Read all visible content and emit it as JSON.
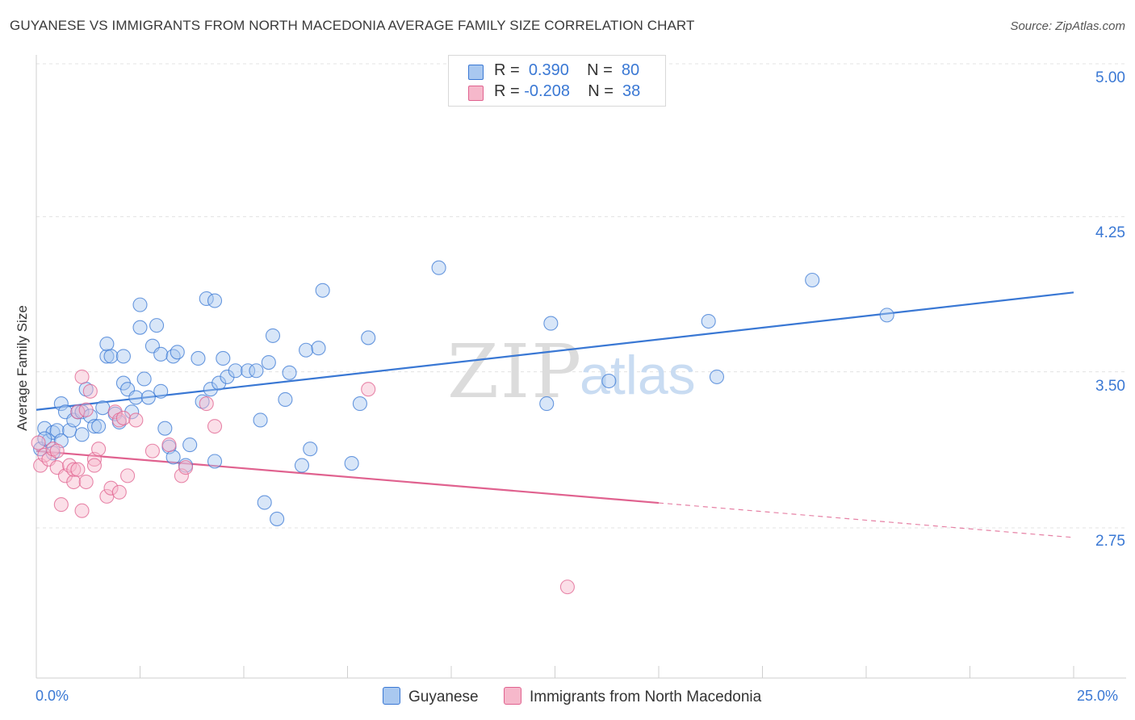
{
  "header": {
    "title": "GUYANESE VS IMMIGRANTS FROM NORTH MACEDONIA AVERAGE FAMILY SIZE CORRELATION CHART",
    "source": "Source: ZipAtlas.com"
  },
  "legend": {
    "rows": [
      {
        "r_label": "R =",
        "r_value": "0.390",
        "n_label": "N =",
        "n_value": "80",
        "color": "#a9c8f0"
      },
      {
        "r_label": "R =",
        "r_value": "-0.208",
        "n_label": "N =",
        "n_value": "38",
        "color": "#f6b8cb"
      }
    ]
  },
  "watermark": {
    "zip": "ZIP",
    "atlas": "atlas"
  },
  "chart_data": {
    "type": "scatter",
    "title": "GUYANESE VS IMMIGRANTS FROM NORTH MACEDONIA AVERAGE FAMILY SIZE CORRELATION CHART",
    "xlabel": "",
    "ylabel": "Average Family Size",
    "xlim": [
      0,
      25
    ],
    "ylim": [
      2.0,
      5.1
    ],
    "x_tick_labels": [
      "0.0%",
      "25.0%"
    ],
    "y_ticks": [
      2.75,
      3.5,
      4.25,
      5.0
    ],
    "y_tick_labels": [
      "2.75",
      "3.50",
      "4.25",
      "5.00"
    ],
    "grid": true,
    "series": [
      {
        "name": "Guyanese",
        "color": "#3a78d4",
        "fill": "#a9c8f0",
        "trend": {
          "x": [
            0,
            25
          ],
          "y": [
            3.39,
            3.96
          ],
          "dashed_from": null
        },
        "points": [
          [
            0.1,
            3.2
          ],
          [
            0.2,
            3.3
          ],
          [
            0.3,
            3.24
          ],
          [
            0.4,
            3.18
          ],
          [
            0.4,
            3.28
          ],
          [
            0.5,
            3.29
          ],
          [
            0.6,
            3.42
          ],
          [
            0.6,
            3.24
          ],
          [
            0.7,
            3.38
          ],
          [
            0.8,
            3.29
          ],
          [
            0.9,
            3.34
          ],
          [
            1.0,
            3.38
          ],
          [
            1.1,
            3.38
          ],
          [
            1.1,
            3.27
          ],
          [
            1.2,
            3.49
          ],
          [
            1.3,
            3.36
          ],
          [
            1.4,
            3.31
          ],
          [
            1.5,
            3.31
          ],
          [
            1.6,
            3.4
          ],
          [
            1.7,
            3.65
          ],
          [
            1.7,
            3.71
          ],
          [
            1.8,
            3.65
          ],
          [
            1.9,
            3.37
          ],
          [
            2.0,
            3.33
          ],
          [
            2.1,
            3.65
          ],
          [
            2.1,
            3.52
          ],
          [
            2.2,
            3.49
          ],
          [
            2.3,
            3.38
          ],
          [
            2.4,
            3.45
          ],
          [
            2.5,
            3.79
          ],
          [
            2.5,
            3.9
          ],
          [
            2.6,
            3.54
          ],
          [
            2.7,
            3.45
          ],
          [
            2.8,
            3.7
          ],
          [
            2.9,
            3.8
          ],
          [
            3.0,
            3.48
          ],
          [
            3.0,
            3.66
          ],
          [
            3.1,
            3.3
          ],
          [
            3.2,
            3.21
          ],
          [
            3.3,
            3.65
          ],
          [
            3.3,
            3.16
          ],
          [
            3.4,
            3.67
          ],
          [
            3.6,
            3.12
          ],
          [
            3.7,
            3.22
          ],
          [
            3.9,
            3.64
          ],
          [
            4.0,
            3.43
          ],
          [
            4.1,
            3.93
          ],
          [
            4.2,
            3.49
          ],
          [
            4.3,
            3.14
          ],
          [
            4.3,
            3.92
          ],
          [
            4.4,
            3.52
          ],
          [
            4.5,
            3.64
          ],
          [
            4.6,
            3.55
          ],
          [
            4.8,
            3.58
          ],
          [
            5.1,
            3.58
          ],
          [
            5.3,
            3.58
          ],
          [
            5.4,
            3.34
          ],
          [
            5.5,
            2.94
          ],
          [
            5.6,
            3.62
          ],
          [
            5.7,
            3.75
          ],
          [
            5.8,
            2.86
          ],
          [
            6.0,
            3.44
          ],
          [
            6.1,
            3.57
          ],
          [
            6.4,
            3.12
          ],
          [
            6.5,
            3.68
          ],
          [
            6.6,
            3.2
          ],
          [
            6.8,
            3.69
          ],
          [
            6.9,
            3.97
          ],
          [
            7.6,
            3.13
          ],
          [
            7.8,
            3.42
          ],
          [
            8.0,
            3.74
          ],
          [
            9.7,
            4.08
          ],
          [
            12.3,
            3.42
          ],
          [
            12.4,
            3.81
          ],
          [
            13.8,
            3.53
          ],
          [
            16.2,
            3.82
          ],
          [
            16.4,
            3.55
          ],
          [
            18.7,
            4.02
          ],
          [
            20.5,
            3.85
          ],
          [
            0.2,
            3.25
          ]
        ]
      },
      {
        "name": "Immigrants from North Macedonia",
        "color": "#e0628f",
        "fill": "#f6b8cb",
        "trend": {
          "x": [
            0,
            25
          ],
          "y": [
            3.19,
            2.77
          ],
          "dashed_from": 15
        },
        "points": [
          [
            0.1,
            3.12
          ],
          [
            0.2,
            3.17
          ],
          [
            0.3,
            3.15
          ],
          [
            0.4,
            3.2
          ],
          [
            0.5,
            3.19
          ],
          [
            0.5,
            3.11
          ],
          [
            0.6,
            2.93
          ],
          [
            0.7,
            3.07
          ],
          [
            0.8,
            3.12
          ],
          [
            0.9,
            3.04
          ],
          [
            0.9,
            3.1
          ],
          [
            1.0,
            3.1
          ],
          [
            1.0,
            3.38
          ],
          [
            1.1,
            3.55
          ],
          [
            1.1,
            2.9
          ],
          [
            1.2,
            3.04
          ],
          [
            1.2,
            3.39
          ],
          [
            1.3,
            3.48
          ],
          [
            1.4,
            3.15
          ],
          [
            1.4,
            3.12
          ],
          [
            1.5,
            3.2
          ],
          [
            1.7,
            2.97
          ],
          [
            1.8,
            3.01
          ],
          [
            1.9,
            3.38
          ],
          [
            2.0,
            3.34
          ],
          [
            2.0,
            2.99
          ],
          [
            2.1,
            3.35
          ],
          [
            2.2,
            3.07
          ],
          [
            2.4,
            3.34
          ],
          [
            2.8,
            3.19
          ],
          [
            3.2,
            3.22
          ],
          [
            3.5,
            3.07
          ],
          [
            3.6,
            3.11
          ],
          [
            4.1,
            3.42
          ],
          [
            4.3,
            3.31
          ],
          [
            8.0,
            3.49
          ],
          [
            12.8,
            2.53
          ],
          [
            0.05,
            3.23
          ]
        ]
      }
    ]
  },
  "bottom_legend": {
    "items": [
      {
        "label": "Guyanese",
        "color": "#a9c8f0",
        "border": "#3a78d4"
      },
      {
        "label": "Immigrants from North Macedonia",
        "color": "#f6b8cb",
        "border": "#e0628f"
      }
    ]
  }
}
